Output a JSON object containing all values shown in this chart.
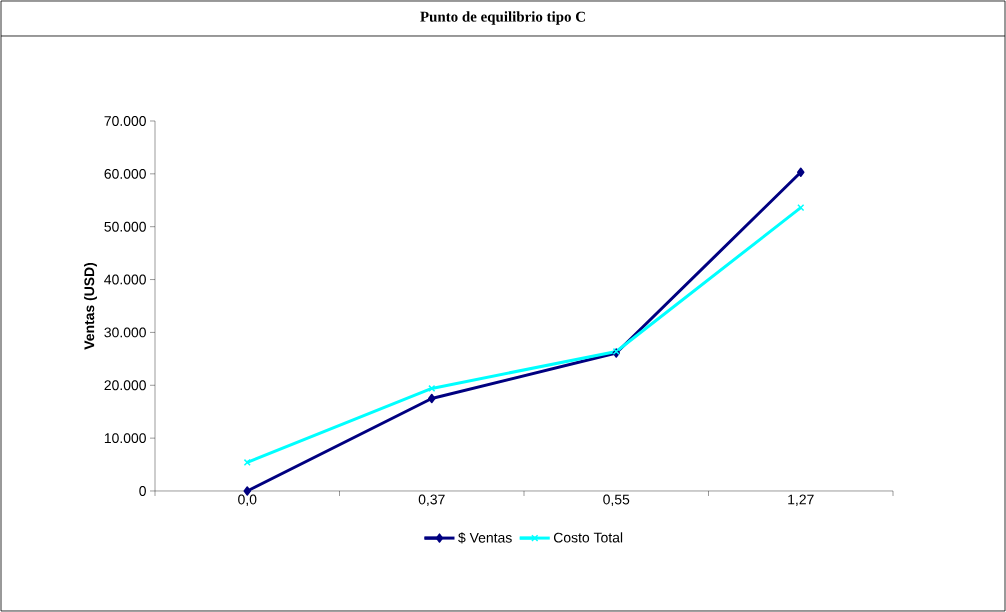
{
  "chart_data": {
    "type": "line",
    "title": "Punto de equilibrio tipo C",
    "ylabel": "Ventas (USD)",
    "categories": [
      "0,0",
      "0,37",
      "0,55",
      "1,27"
    ],
    "series": [
      {
        "name": "$ Ventas",
        "color": "#000080",
        "marker": "diamond",
        "values": [
          0,
          17500,
          26100,
          60300
        ]
      },
      {
        "name": "Costo Total",
        "color": "#00ffff",
        "marker": "cross",
        "values": [
          5400,
          19400,
          26400,
          53600
        ]
      }
    ],
    "ylim": [
      0,
      70000
    ],
    "yticks": [
      0,
      {
        "value": 10000,
        "label": "10.000"
      },
      {
        "value": 20000,
        "label": "20.000"
      },
      {
        "value": 30000,
        "label": "30.000"
      },
      {
        "value": 40000,
        "label": "40.000"
      },
      {
        "value": 50000,
        "label": "50.000"
      },
      {
        "value": 60000,
        "label": "60.000"
      },
      {
        "value": 70000,
        "label": "70.000"
      }
    ],
    "grid": false,
    "legend": "bottom",
    "line_style": "solid"
  }
}
